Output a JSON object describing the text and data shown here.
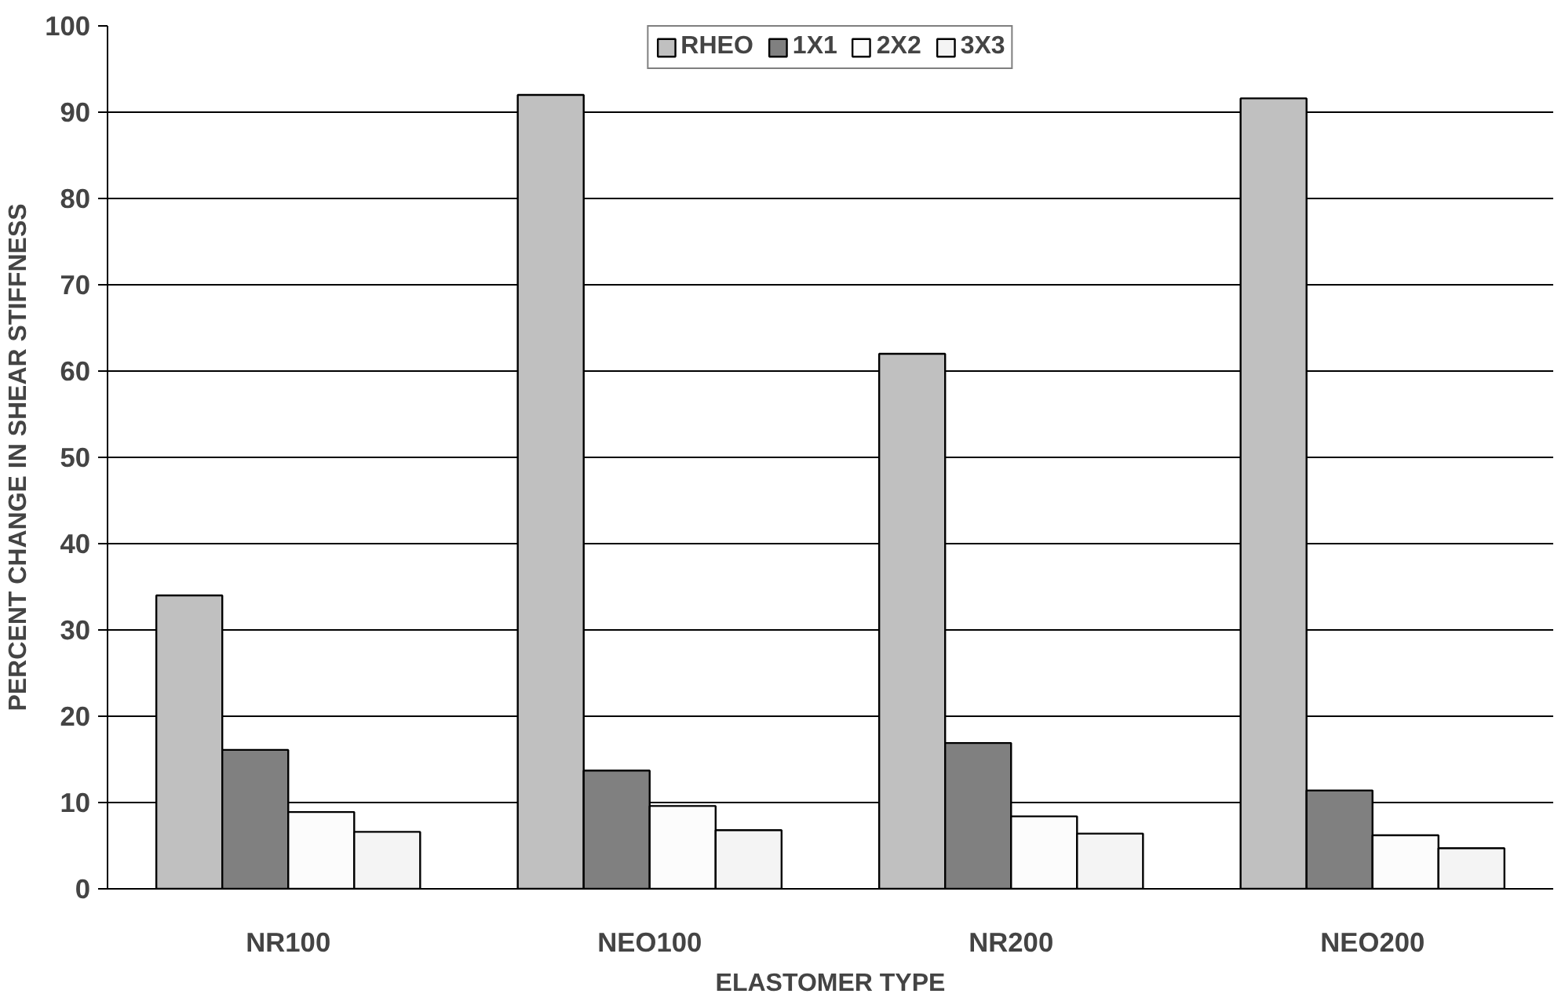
{
  "chart_data": {
    "type": "bar",
    "xlabel": "ELASTOMER TYPE",
    "ylabel": "PERCENT CHANGE IN SHEAR STIFFNESS",
    "categories": [
      "NR100",
      "NEO100",
      "NR200",
      "NEO200"
    ],
    "series": [
      {
        "name": "RHEO",
        "color": "#c0c0c0",
        "values": [
          34,
          92,
          62,
          91.6
        ]
      },
      {
        "name": "1X1",
        "color": "#808080",
        "values": [
          16.1,
          13.7,
          16.9,
          11.4
        ]
      },
      {
        "name": "2X2",
        "color": "#fcfcfc",
        "values": [
          8.9,
          9.6,
          8.4,
          6.2
        ]
      },
      {
        "name": "3X3",
        "color": "#f4f4f4",
        "values": [
          6.6,
          6.8,
          6.4,
          4.7
        ]
      }
    ],
    "ylim": [
      0,
      100
    ],
    "yticks": [
      0,
      10,
      20,
      30,
      40,
      50,
      60,
      70,
      80,
      90,
      100
    ],
    "grid": "y",
    "legend": "top"
  }
}
